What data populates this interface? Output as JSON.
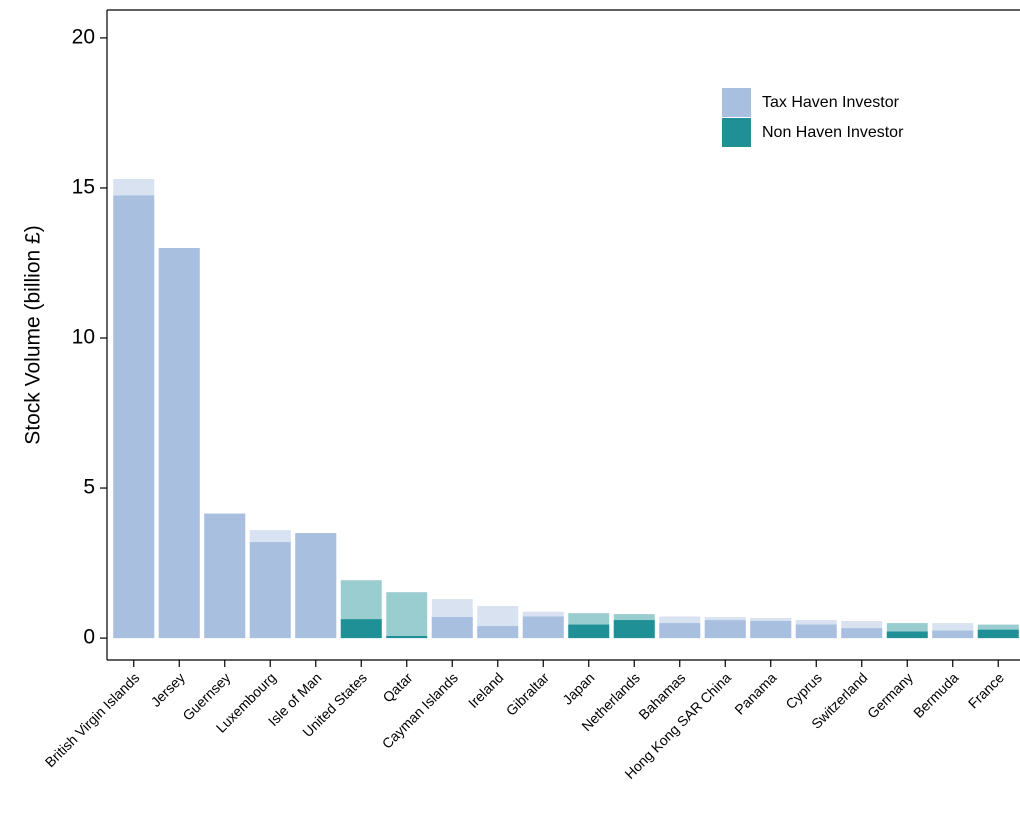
{
  "chart_data": {
    "type": "bar",
    "y_label": "Stock Volume (billion £)",
    "categories": [
      "British Virgin Islands",
      "Jersey",
      "Guernsey",
      "Luxembourg",
      "Isle of Man",
      "United States",
      "Qatar",
      "Cayman Islands",
      "Ireland",
      "Gibraltar",
      "Japan",
      "Netherlands",
      "Bahamas",
      "Hong Kong SAR China",
      "Panama",
      "Cyprus",
      "Switzerland",
      "Germany",
      "Bermuda",
      "France"
    ],
    "series": [
      {
        "name": "Tax Haven Investor",
        "color": "#a9bfdf",
        "values": [
          14.75,
          13.0,
          4.15,
          3.2,
          3.5,
          null,
          null,
          0.7,
          0.4,
          0.72,
          null,
          null,
          0.5,
          0.6,
          0.57,
          0.45,
          0.33,
          null,
          0.25,
          null
        ],
        "totals": [
          15.3,
          13.0,
          4.15,
          3.6,
          3.5,
          null,
          null,
          1.3,
          1.07,
          0.88,
          null,
          null,
          0.72,
          0.7,
          0.67,
          0.6,
          0.57,
          null,
          0.5,
          null
        ]
      },
      {
        "name": "Non Haven Investor",
        "color": "#1f9096",
        "values": [
          null,
          null,
          null,
          null,
          null,
          0.63,
          0.07,
          null,
          null,
          null,
          0.45,
          0.6,
          null,
          null,
          null,
          null,
          null,
          0.22,
          null,
          0.28
        ],
        "totals": [
          null,
          null,
          null,
          null,
          null,
          1.93,
          1.53,
          null,
          null,
          null,
          0.83,
          0.8,
          null,
          null,
          null,
          null,
          null,
          0.5,
          null,
          0.45
        ]
      }
    ],
    "ylim": [
      -0.73,
      20.93
    ],
    "yticks": [
      0,
      5,
      10,
      15,
      20
    ]
  }
}
